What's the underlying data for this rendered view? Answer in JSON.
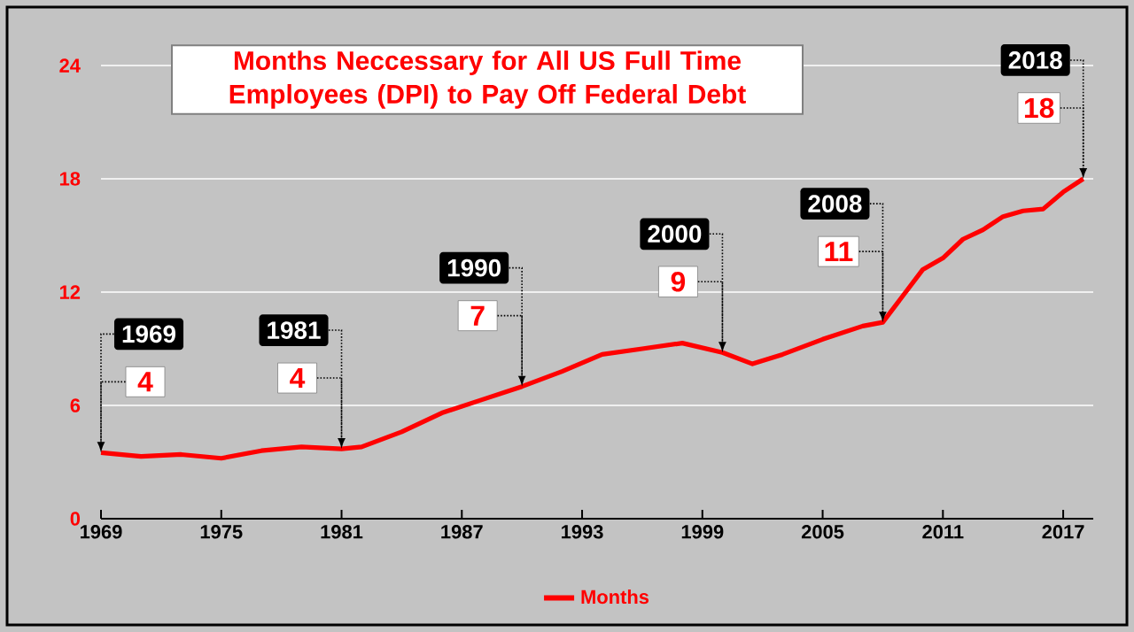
{
  "chart_data": {
    "type": "line",
    "title": "Months Neccessary for All US Full Time Employees (DPI) to Pay Off Federal Debt",
    "x": [
      1969,
      1971,
      1973,
      1975,
      1977,
      1979,
      1981,
      1982,
      1984,
      1986,
      1988,
      1990,
      1992,
      1994,
      1996,
      1998,
      2000,
      2001.5,
      2003,
      2005,
      2007,
      2008,
      2009,
      2010,
      2011,
      2012,
      2013,
      2014,
      2015,
      2016,
      2017,
      2018
    ],
    "series": [
      {
        "name": "Months",
        "color": "#ff0000",
        "values": [
          3.5,
          3.3,
          3.4,
          3.2,
          3.6,
          3.8,
          3.7,
          3.8,
          4.6,
          5.6,
          6.3,
          7.0,
          7.8,
          8.7,
          9.0,
          9.3,
          8.8,
          8.2,
          8.7,
          9.5,
          10.2,
          10.4,
          11.8,
          13.2,
          13.8,
          14.8,
          15.3,
          16.0,
          16.3,
          16.4,
          17.3,
          18.0
        ]
      }
    ],
    "xlim": [
      1969,
      2018.5
    ],
    "xticks": [
      1969,
      1975,
      1981,
      1987,
      1993,
      1999,
      2005,
      2011,
      2017
    ],
    "ylim": [
      0,
      24
    ],
    "yticks": [
      0,
      6,
      12,
      18,
      24
    ],
    "grid": "y",
    "legend": "bottom",
    "marker": "none",
    "line_style": "solid",
    "annotations": [
      {
        "text": "1969",
        "x": 1969,
        "y": 3.5
      },
      {
        "text": "4",
        "x": 1969,
        "y": 3.5
      },
      {
        "text": "1981",
        "x": 1981,
        "y": 3.7
      },
      {
        "text": "4",
        "x": 1981,
        "y": 3.7
      },
      {
        "text": "1990",
        "x": 1990,
        "y": 7.0
      },
      {
        "text": "7",
        "x": 1990,
        "y": 7.0
      },
      {
        "text": "2000",
        "x": 2000,
        "y": 8.8
      },
      {
        "text": "9",
        "x": 2000,
        "y": 8.8
      },
      {
        "text": "2008",
        "x": 2008,
        "y": 10.4
      },
      {
        "text": "11",
        "x": 2008,
        "y": 10.4
      },
      {
        "text": "2018",
        "x": 2018,
        "y": 18.0
      },
      {
        "text": "18",
        "x": 2018,
        "y": 18.0
      }
    ]
  }
}
